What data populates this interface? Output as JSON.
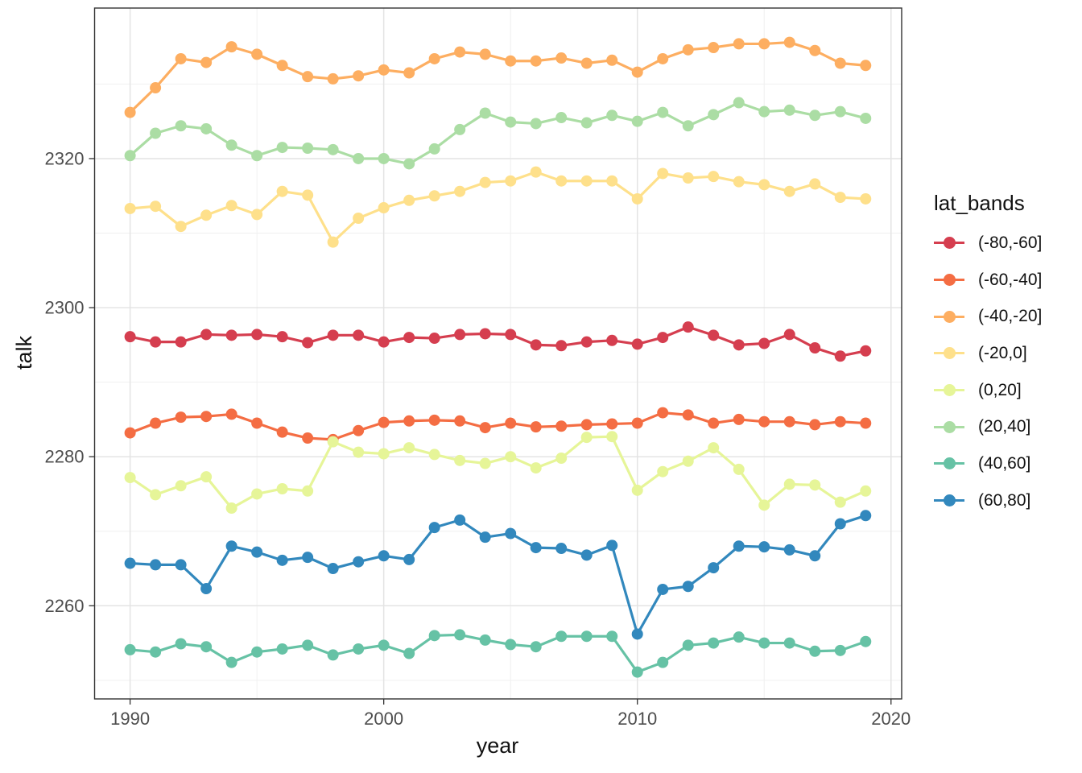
{
  "chart_data": {
    "type": "line",
    "xlabel": "year",
    "ylabel": "talk",
    "x": [
      1990,
      1991,
      1992,
      1993,
      1994,
      1995,
      1996,
      1997,
      1998,
      1999,
      2000,
      2001,
      2002,
      2003,
      2004,
      2005,
      2006,
      2007,
      2008,
      2009,
      2010,
      2011,
      2012,
      2013,
      2014,
      2015,
      2016,
      2017,
      2018,
      2019
    ],
    "x_ticks": [
      1990,
      2000,
      2010,
      2020
    ],
    "y_ticks": [
      2260,
      2280,
      2300,
      2320
    ],
    "x_minor_ticks": [
      1995,
      2005,
      2015
    ],
    "y_minor_ticks": [
      2250,
      2270,
      2290,
      2310,
      2330
    ],
    "xlim": [
      1988.6,
      2020.42
    ],
    "ylim": [
      2247.5,
      2340.2
    ],
    "grid": true,
    "legend": {
      "title": "lat_bands",
      "position": "right"
    },
    "series": [
      {
        "name": "(-80,-60]",
        "color": "#D53E4F",
        "values": [
          2296.1,
          2295.4,
          2295.4,
          2296.4,
          2296.3,
          2296.4,
          2296.1,
          2295.3,
          2296.3,
          2296.3,
          2295.4,
          2296.0,
          2295.9,
          2296.4,
          2296.5,
          2296.4,
          2295.0,
          2294.9,
          2295.4,
          2295.6,
          2295.1,
          2296.0,
          2297.4,
          2296.3,
          2295.0,
          2295.2,
          2296.4,
          2294.6,
          2293.5,
          2294.2
        ]
      },
      {
        "name": "(-60,-40]",
        "color": "#F46D43",
        "values": [
          2283.2,
          2284.5,
          2285.3,
          2285.4,
          2285.7,
          2284.5,
          2283.3,
          2282.5,
          2282.3,
          2283.5,
          2284.6,
          2284.8,
          2284.9,
          2284.8,
          2283.9,
          2284.5,
          2284.0,
          2284.1,
          2284.3,
          2284.4,
          2284.5,
          2285.9,
          2285.6,
          2284.5,
          2285.0,
          2284.7,
          2284.7,
          2284.3,
          2284.7,
          2284.5
        ]
      },
      {
        "name": "(-40,-20]",
        "color": "#FDAE61",
        "values": [
          2326.2,
          2329.5,
          2333.4,
          2332.9,
          2335.0,
          2334.0,
          2332.5,
          2331.0,
          2330.7,
          2331.1,
          2331.9,
          2331.5,
          2333.4,
          2334.3,
          2334.0,
          2333.1,
          2333.1,
          2333.5,
          2332.8,
          2333.2,
          2331.6,
          2333.4,
          2334.6,
          2334.9,
          2335.4,
          2335.4,
          2335.6,
          2334.5,
          2332.8,
          2332.5
        ]
      },
      {
        "name": "(-20,0]",
        "color": "#FEE08B",
        "values": [
          2313.3,
          2313.6,
          2310.9,
          2312.4,
          2313.7,
          2312.5,
          2315.6,
          2315.1,
          2308.8,
          2312.0,
          2313.4,
          2314.4,
          2315.0,
          2315.6,
          2316.8,
          2317.0,
          2318.2,
          2317.0,
          2317.0,
          2317.0,
          2314.6,
          2318.0,
          2317.4,
          2317.6,
          2316.9,
          2316.5,
          2315.6,
          2316.6,
          2314.8,
          2314.6
        ]
      },
      {
        "name": "(0,20]",
        "color": "#E6F598",
        "values": [
          2277.2,
          2274.9,
          2276.1,
          2277.3,
          2273.1,
          2275.0,
          2275.7,
          2275.4,
          2282.0,
          2280.6,
          2280.4,
          2281.2,
          2280.3,
          2279.5,
          2279.1,
          2280.0,
          2278.5,
          2279.8,
          2282.6,
          2282.7,
          2275.5,
          2278.0,
          2279.4,
          2281.2,
          2278.3,
          2273.5,
          2276.3,
          2276.2,
          2273.9,
          2275.4
        ]
      },
      {
        "name": "(20,40]",
        "color": "#ABDDA4",
        "values": [
          2320.4,
          2323.4,
          2324.4,
          2324.0,
          2321.8,
          2320.4,
          2321.5,
          2321.4,
          2321.2,
          2320.0,
          2320.0,
          2319.3,
          2321.3,
          2323.9,
          2326.1,
          2324.9,
          2324.7,
          2325.5,
          2324.8,
          2325.8,
          2325.0,
          2326.2,
          2324.4,
          2325.9,
          2327.5,
          2326.3,
          2326.5,
          2325.8,
          2326.3,
          2325.4
        ]
      },
      {
        "name": "(40,60]",
        "color": "#66C2A5",
        "values": [
          2254.1,
          2253.8,
          2254.9,
          2254.5,
          2252.4,
          2253.8,
          2254.2,
          2254.7,
          2253.4,
          2254.2,
          2254.7,
          2253.6,
          2256.0,
          2256.1,
          2255.4,
          2254.8,
          2254.5,
          2255.9,
          2255.9,
          2255.9,
          2251.1,
          2252.4,
          2254.7,
          2255.0,
          2255.8,
          2255.0,
          2255.0,
          2253.9,
          2254.0,
          2255.2
        ]
      },
      {
        "name": "(60,80]",
        "color": "#3288BD",
        "values": [
          2265.7,
          2265.5,
          2265.5,
          2262.3,
          2268.0,
          2267.2,
          2266.1,
          2266.5,
          2265.0,
          2265.9,
          2266.7,
          2266.2,
          2270.5,
          2271.5,
          2269.2,
          2269.7,
          2267.8,
          2267.7,
          2266.8,
          2268.1,
          2256.2,
          2262.2,
          2262.6,
          2265.1,
          2268.0,
          2267.9,
          2267.5,
          2266.7,
          2271.0,
          2272.1
        ]
      }
    ],
    "style": {
      "panel_border": "#333333",
      "grid_major": "#e4e4e4",
      "grid_minor": "#f0f0f0",
      "tick_color": "#333333",
      "tick_label_color": "#4d4d4d",
      "point_radius": 7,
      "line_width": 3.2
    }
  }
}
